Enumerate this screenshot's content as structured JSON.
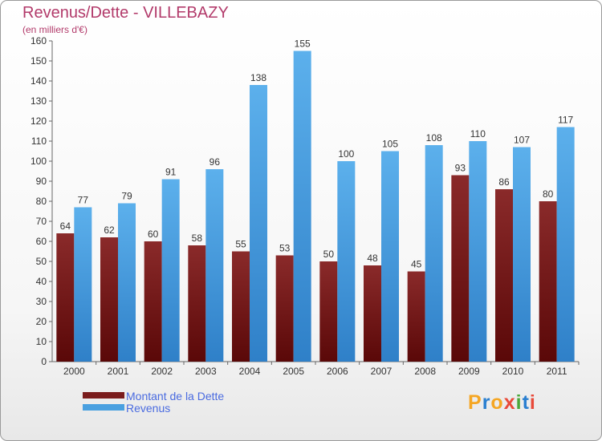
{
  "chart_data": {
    "type": "bar",
    "title": "Revenus/Dette - VILLEBAZY",
    "subtitle": "(en milliers d'€)",
    "categories": [
      "2000",
      "2001",
      "2002",
      "2003",
      "2004",
      "2005",
      "2006",
      "2007",
      "2008",
      "2009",
      "2010",
      "2011"
    ],
    "series": [
      {
        "name": "Montant de la Dette",
        "color": "#7a1c1c",
        "values": [
          64,
          62,
          60,
          58,
          55,
          53,
          50,
          48,
          45,
          93,
          86,
          80
        ]
      },
      {
        "name": "Revenus",
        "color": "#4aa0e0",
        "values": [
          77,
          79,
          91,
          96,
          138,
          155,
          100,
          105,
          108,
          110,
          107,
          117
        ]
      }
    ],
    "ylim": [
      0,
      160
    ],
    "yticks": [
      0,
      10,
      20,
      30,
      40,
      50,
      60,
      70,
      80,
      90,
      100,
      110,
      120,
      130,
      140,
      150,
      160
    ],
    "xlabel": "",
    "ylabel": "",
    "grid": false,
    "legend": "bottom-left"
  },
  "logo": {
    "text": "Proxiti",
    "letters": [
      "P",
      "r",
      "o",
      "x",
      "i",
      "t",
      "i"
    ],
    "colors": [
      "#f5a623",
      "#2a7fd0",
      "#f5a623",
      "#e84a3a",
      "#4aa83a",
      "#2a7fd0",
      "#e84a3a"
    ]
  }
}
